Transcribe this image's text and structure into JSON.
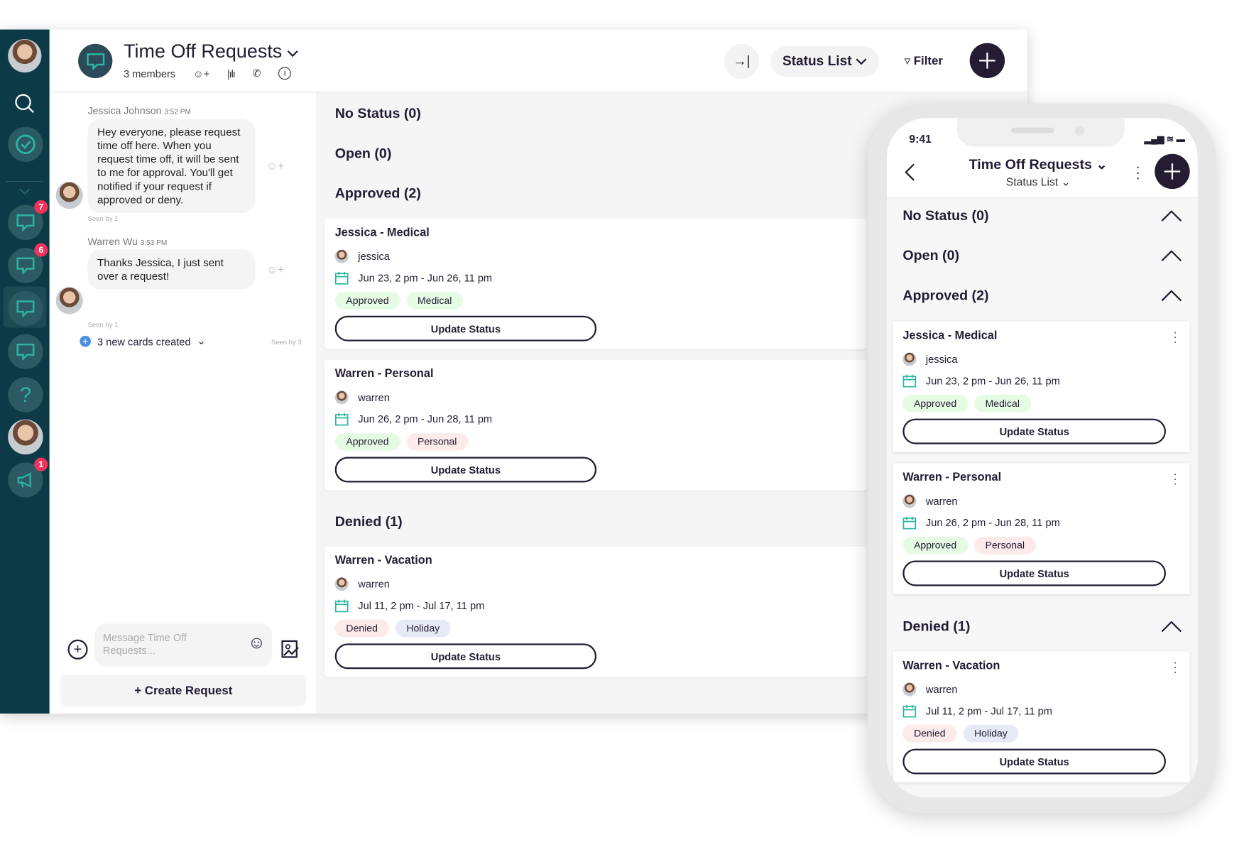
{
  "desktop": {
    "title": "Time Off Requests",
    "members": "3 members",
    "view_label": "Status List",
    "filter_label": "Filter",
    "sidebar_badges": [
      "7",
      "6",
      "1"
    ],
    "messages": [
      {
        "author": "Jessica Johnson",
        "time": "3:52 PM",
        "text": "Hey everyone, please request time off here. When you request time off, it will be sent to me for approval. You'll get notified if your request if approved or deny.",
        "seen": "Seen by 1"
      },
      {
        "author": "Warren Wu",
        "time": "3:53 PM",
        "text": "Thanks Jessica, I just sent over a request!",
        "seen": "Seen by 1"
      }
    ],
    "cards_created": "3 new cards created",
    "cards_seen": "Seen by 3",
    "composer_placeholder": "Message Time Off Requests...",
    "create_request": "+ Create Request"
  },
  "sections": [
    "No Status (0)",
    "Open (0)",
    "Approved (2)",
    "Denied (1)"
  ],
  "cards": [
    {
      "title": "Jessica - Medical",
      "user": "jessica",
      "dates": "Jun 23, 2 pm - Jun 26, 11 pm",
      "tags": [
        "Approved",
        "Medical"
      ],
      "button": "Update Status"
    },
    {
      "title": "Warren - Personal",
      "user": "warren",
      "dates": "Jun 26, 2 pm - Jun 28, 11 pm",
      "tags": [
        "Approved",
        "Personal"
      ],
      "button": "Update Status"
    },
    {
      "title": "Warren - Vacation",
      "user": "warren",
      "dates": "Jul 11, 2 pm - Jul 17, 11 pm",
      "tags": [
        "Denied",
        "Holiday"
      ],
      "button": "Update Status"
    }
  ],
  "phone": {
    "time": "9:41",
    "title": "Time Off Requests",
    "subtitle": "Status List"
  },
  "colors": {
    "sidebar": "#0c3a46",
    "accent": "#2bb5a0",
    "dark": "#231c33",
    "badge": "#f0335d",
    "tag_green": "#e6fbe4",
    "tag_pink": "#fdeaea",
    "tag_blue": "#e6eaf6"
  }
}
